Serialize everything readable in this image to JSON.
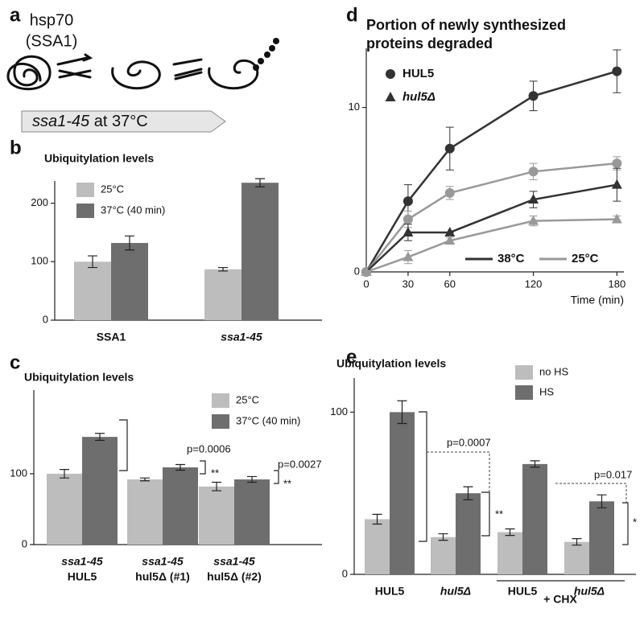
{
  "diagram": {
    "panel_label": "a",
    "labels": [
      "hsp70",
      "(SSA1)"
    ],
    "banner": {
      "italic": "ssa1-45",
      "rest": "at 37°C"
    }
  },
  "chart_data": [
    {
      "type": "bar",
      "panel_label": "b",
      "title": "Ubiquitylation levels",
      "categories": [
        [
          "SSA1"
        ],
        [
          "ssa1-45"
        ]
      ],
      "category_italic": [
        [
          false
        ],
        [
          true
        ]
      ],
      "series": [
        {
          "name": "25°C",
          "color": "#bdbdbd",
          "values": [
            100,
            87
          ],
          "errors": [
            10,
            3
          ]
        },
        {
          "name": "37°C (40 min)",
          "color": "#6e6e6e",
          "values": [
            132,
            235
          ],
          "errors": [
            12,
            7
          ]
        }
      ],
      "ylim": [
        0,
        238
      ],
      "yticks": [
        0,
        100,
        200
      ],
      "annotations": []
    },
    {
      "type": "bar",
      "panel_label": "c",
      "title": "Ubiquitylation levels",
      "categories": [
        [
          "ssa1-45",
          "HUL5"
        ],
        [
          "ssa1-45",
          "hul5Δ (#1)"
        ],
        [
          "ssa1-45",
          "hul5Δ (#2)"
        ]
      ],
      "category_italic": [
        [
          true,
          false
        ],
        [
          true,
          false
        ],
        [
          true,
          false
        ]
      ],
      "series": [
        {
          "name": "25°C",
          "color": "#bdbdbd",
          "values": [
            100,
            92,
            82
          ],
          "errors": [
            6,
            2,
            6
          ]
        },
        {
          "name": "37°C (40 min)",
          "color": "#6e6e6e",
          "values": [
            152,
            109,
            92
          ],
          "errors": [
            5,
            4,
            4
          ]
        }
      ],
      "ylim": [
        0,
        218
      ],
      "yticks": [
        0,
        100
      ],
      "annotations": [
        "p=0.0006",
        "**",
        "p=0.0027",
        "**"
      ]
    },
    {
      "type": "line",
      "panel_label": "d",
      "title": [
        "Portion of newly synthesized",
        "proteins degraded"
      ],
      "x": [
        0,
        30,
        60,
        120,
        180
      ],
      "xlim": [
        0,
        185
      ],
      "xticks": [
        0,
        30,
        60,
        120,
        180
      ],
      "xlabel": "Time (min)",
      "ylim": [
        0,
        13.6
      ],
      "yticks": [
        0,
        10
      ],
      "marker_legend": [
        {
          "label": "HUL5",
          "marker": "circle"
        },
        {
          "label": "hul5Δ",
          "marker": "triangle"
        }
      ],
      "line_legend": [
        {
          "label": "38°C",
          "color": "#333333"
        },
        {
          "label": "25°C",
          "color": "#999999"
        }
      ],
      "series": [
        {
          "marker": 0,
          "line": 0,
          "values": [
            0,
            4.3,
            7.5,
            10.7,
            12.2
          ],
          "errors": [
            0,
            1,
            1.3,
            0.9,
            1.3
          ]
        },
        {
          "marker": 0,
          "line": 1,
          "values": [
            0,
            3.2,
            4.8,
            6.1,
            6.6
          ],
          "errors": [
            0,
            0.5,
            0.4,
            0.5,
            0.4
          ]
        },
        {
          "marker": 1,
          "line": 0,
          "values": [
            0,
            2.4,
            2.4,
            4.4,
            5.3
          ],
          "errors": [
            0,
            0.5,
            0,
            0.5,
            1
          ]
        },
        {
          "marker": 1,
          "line": 1,
          "values": [
            0,
            0.9,
            1.9,
            3.1,
            3.2
          ],
          "errors": [
            0,
            0.4,
            0.2,
            0.3,
            0.2
          ]
        }
      ]
    },
    {
      "type": "bar",
      "panel_label": "e",
      "title": "Ubiquitylation levels",
      "categories": [
        [
          "HUL5"
        ],
        [
          "hul5Δ"
        ],
        [
          "HUL5"
        ],
        [
          "hul5Δ"
        ]
      ],
      "category_italic": [
        [
          false
        ],
        [
          true
        ],
        [
          false
        ],
        [
          true
        ]
      ],
      "group_label": "+ CHX",
      "series": [
        {
          "name": "no HS",
          "color": "#bdbdbd",
          "values": [
            34,
            23,
            26,
            20
          ],
          "errors": [
            3,
            2,
            2,
            2
          ]
        },
        {
          "name": "HS",
          "color": "#6e6e6e",
          "values": [
            100,
            50,
            68,
            45
          ],
          "errors": [
            7,
            4,
            2,
            4
          ]
        }
      ],
      "ylim": [
        0,
        121
      ],
      "yticks": [
        0,
        100
      ],
      "annotations": [
        "p=0.0007",
        "**",
        "p=0.017",
        "*"
      ]
    }
  ]
}
